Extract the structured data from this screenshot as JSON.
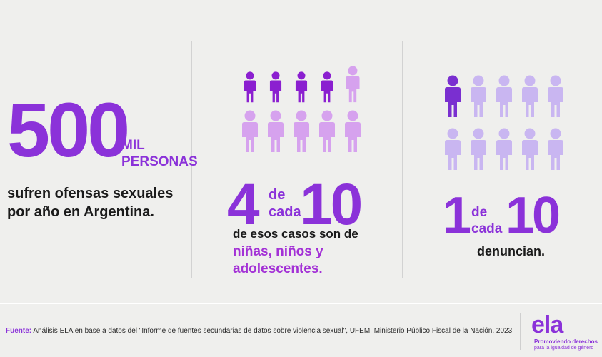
{
  "panel1": {
    "number": "500",
    "mil": "MIL",
    "personas": "PERSONAS",
    "line1": "sufren ofensas sexuales",
    "line2": "por año en Argentina."
  },
  "panel2": {
    "numerator": "4",
    "de": "de",
    "cada": "cada",
    "denominator": "10",
    "line1": "de esos casos son de",
    "line2": "niñas, niños y",
    "line3": "adolescentes."
  },
  "panel3": {
    "numerator": "1",
    "de": "de",
    "cada": "cada",
    "denominator": "10",
    "line1": "denuncian."
  },
  "footer": {
    "label": "Fuente:",
    "text": " Análisis ELA en base a datos del \"Informe de fuentes secundarias de datos sobre violencia sexual\", UFEM, Ministerio Público Fiscal de la Nación, 2023."
  },
  "logo": {
    "name": "ela",
    "tagline1": "Promoviendo derechos",
    "tagline2": "para la igualdad de género"
  },
  "icons": {
    "panel2_highlighted": 4,
    "panel2_total": 10,
    "panel3_highlighted": 1,
    "panel3_total": 10,
    "colors": {
      "dark": "#8b1fd0",
      "light": "#d6a2ee",
      "panel3_dark": "#7a2fd0",
      "panel3_light": "#c9b6f1"
    }
  }
}
